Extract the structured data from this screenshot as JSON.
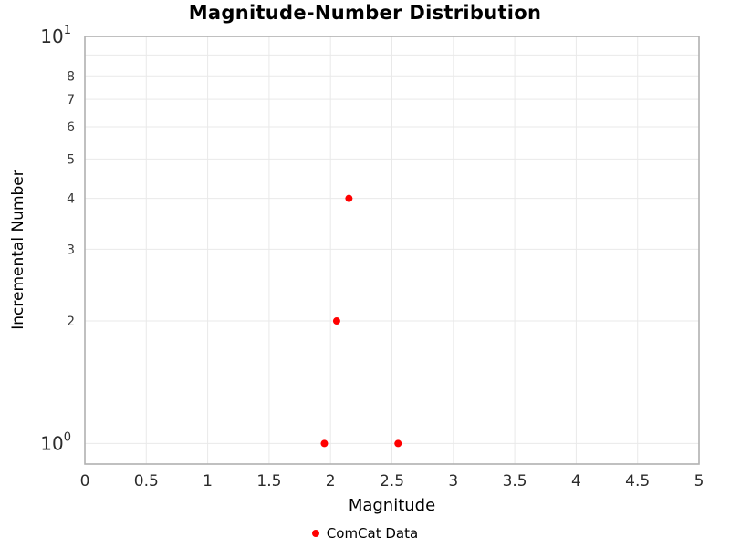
{
  "chart_data": {
    "type": "scatter",
    "title": "Magnitude-Number Distribution",
    "xlabel": "Magnitude",
    "ylabel": "Incremental Number",
    "xlim": [
      0,
      5
    ],
    "x_ticks": [
      {
        "value": 0,
        "label": "0"
      },
      {
        "value": 0.5,
        "label": "0.5"
      },
      {
        "value": 1,
        "label": "1"
      },
      {
        "value": 1.5,
        "label": "1.5"
      },
      {
        "value": 2,
        "label": "2"
      },
      {
        "value": 2.5,
        "label": "2.5"
      },
      {
        "value": 3,
        "label": "3"
      },
      {
        "value": 3.5,
        "label": "3.5"
      },
      {
        "value": 4,
        "label": "4"
      },
      {
        "value": 4.5,
        "label": "4.5"
      },
      {
        "value": 5,
        "label": "5"
      }
    ],
    "yscale": "log",
    "ylim": [
      0.89,
      10
    ],
    "y_major_ticks": [
      {
        "value": 1,
        "base": "10",
        "exponent": "0"
      },
      {
        "value": 10,
        "base": "10",
        "exponent": "1"
      }
    ],
    "y_minor_ticks": [
      {
        "value": 2,
        "label": "2"
      },
      {
        "value": 3,
        "label": "3"
      },
      {
        "value": 4,
        "label": "4"
      },
      {
        "value": 5,
        "label": "5"
      },
      {
        "value": 6,
        "label": "6"
      },
      {
        "value": 7,
        "label": "7"
      },
      {
        "value": 8,
        "label": "8"
      },
      {
        "value": 9,
        "label": ""
      }
    ],
    "grid": true,
    "legend_position": "bottom-center",
    "series": [
      {
        "name": "ComCat Data",
        "color": "#ff0000",
        "marker": "circle",
        "x": [
          1.95,
          2.05,
          2.15,
          2.55
        ],
        "y": [
          1,
          2,
          4,
          1
        ]
      }
    ]
  },
  "colors": {
    "background": "#ffffff",
    "plot_border": "#b1b1b1",
    "gridline": "#e9e9e9",
    "tick_label": "#2b2b2b",
    "minor_tick_label": "#3a3a3a",
    "point": "#ff0000"
  }
}
